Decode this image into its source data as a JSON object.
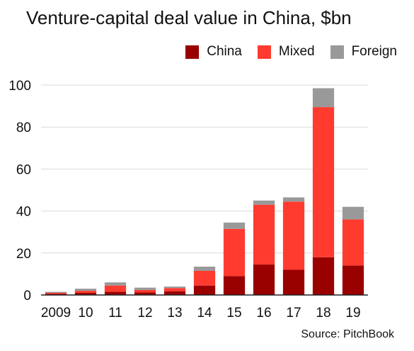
{
  "title": "Venture-capital deal value in China, $bn",
  "source": "Source: PitchBook",
  "colors": {
    "china": "#990000",
    "mixed": "#ff3b30",
    "foreign": "#999999",
    "grid": "#d9d9d9",
    "axis": "#222222"
  },
  "legend": [
    {
      "label": "China",
      "color": "#990000"
    },
    {
      "label": "Mixed",
      "color": "#ff3b30"
    },
    {
      "label": "Foreign",
      "color": "#999999"
    }
  ],
  "chart_data": {
    "type": "bar",
    "stacked": true,
    "title": "Venture-capital deal value in China, $bn",
    "categories": [
      "2009",
      "10",
      "11",
      "12",
      "13",
      "14",
      "15",
      "16",
      "17",
      "18",
      "19"
    ],
    "series": [
      {
        "name": "China",
        "color": "#990000",
        "values": [
          0.5,
          1.0,
          1.5,
          1.2,
          1.8,
          4.5,
          9.0,
          14.5,
          12.0,
          18.0,
          14.0
        ]
      },
      {
        "name": "Mixed",
        "color": "#ff3b30",
        "values": [
          0.5,
          1.0,
          3.0,
          1.2,
          1.5,
          7.0,
          22.5,
          28.5,
          32.5,
          71.5,
          22.0
        ]
      },
      {
        "name": "Foreign",
        "color": "#999999",
        "values": [
          0.5,
          1.0,
          1.5,
          1.1,
          0.7,
          2.0,
          3.0,
          2.0,
          2.0,
          9.0,
          6.0
        ]
      }
    ],
    "yticks": [
      0,
      20,
      40,
      60,
      80,
      100
    ],
    "ylim": [
      0,
      100
    ],
    "xlabel": "",
    "ylabel": "",
    "grid": true,
    "legend_position": "top-right"
  }
}
